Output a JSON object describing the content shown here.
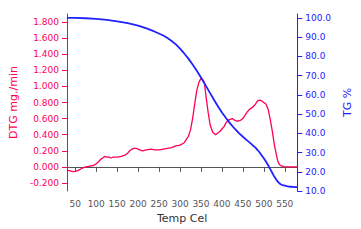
{
  "chart_data": {
    "type": "line",
    "xlabel": "Temp Cel",
    "ylabel": "DTG mg./min",
    "y2label": "TG %",
    "grid": false,
    "xlim": [
      30,
      580
    ],
    "xticks": [
      50,
      100,
      150,
      200,
      250,
      300,
      350,
      400,
      450,
      500,
      550
    ],
    "ylim": [
      -0.3,
      1.9
    ],
    "yticks": [
      {
        "value": -0.2,
        "label": "-0.200"
      },
      {
        "value": 0.0,
        "label": "0.000"
      },
      {
        "value": 0.2,
        "label": "0.200"
      },
      {
        "value": 0.4,
        "label": "0.400"
      },
      {
        "value": 0.6,
        "label": "0.600"
      },
      {
        "value": 0.8,
        "label": "0.800"
      },
      {
        "value": 1.0,
        "label": "1.000"
      },
      {
        "value": 1.2,
        "label": "1.200"
      },
      {
        "value": 1.4,
        "label": "1.400"
      },
      {
        "value": 1.6,
        "label": "1.600"
      },
      {
        "value": 1.8,
        "label": "1.800"
      }
    ],
    "y2lim": [
      10.0,
      102.0
    ],
    "y2ticks": [
      {
        "value": 10.0,
        "label": "10.0"
      },
      {
        "value": 20.0,
        "label": "20.0"
      },
      {
        "value": 30.0,
        "label": "30.0"
      },
      {
        "value": 40.0,
        "label": "40.0"
      },
      {
        "value": 50.0,
        "label": "50.0"
      },
      {
        "value": 60.0,
        "label": "60.0"
      },
      {
        "value": 70.0,
        "label": "70.0"
      },
      {
        "value": 80.0,
        "label": "80.0"
      },
      {
        "value": 90.0,
        "label": "90.0"
      },
      {
        "value": 100.0,
        "label": "100.0"
      }
    ],
    "series": [
      {
        "color": "#FF0055",
        "x": [
          30,
          45,
          55,
          65,
          75,
          85,
          95,
          100,
          105,
          110,
          115,
          120,
          125,
          130,
          135,
          140,
          145,
          150,
          160,
          170,
          175,
          180,
          185,
          190,
          195,
          200,
          210,
          220,
          230,
          240,
          250,
          260,
          270,
          280,
          290,
          300,
          310,
          320,
          325,
          330,
          335,
          340,
          345,
          350,
          355,
          358,
          362,
          367,
          372,
          378,
          385,
          390,
          395,
          400,
          405,
          410,
          415,
          420,
          425,
          430,
          435,
          440,
          445,
          450,
          455,
          460,
          465,
          470,
          475,
          480,
          485,
          490,
          495,
          500,
          505,
          510,
          515,
          520,
          525,
          530,
          533,
          536,
          539,
          542,
          545,
          548,
          552,
          555,
          558,
          562,
          566,
          570,
          575,
          580
        ],
        "values": [
          -0.04,
          -0.06,
          -0.05,
          -0.02,
          0.0,
          0.01,
          0.02,
          0.04,
          0.06,
          0.09,
          0.11,
          0.13,
          0.12,
          0.12,
          0.11,
          0.12,
          0.12,
          0.12,
          0.13,
          0.15,
          0.17,
          0.2,
          0.22,
          0.23,
          0.23,
          0.22,
          0.2,
          0.21,
          0.22,
          0.21,
          0.21,
          0.22,
          0.23,
          0.24,
          0.26,
          0.27,
          0.3,
          0.38,
          0.46,
          0.6,
          0.78,
          0.95,
          1.05,
          1.1,
          1.08,
          1.05,
          0.88,
          0.68,
          0.52,
          0.43,
          0.4,
          0.42,
          0.44,
          0.47,
          0.5,
          0.55,
          0.58,
          0.59,
          0.6,
          0.58,
          0.57,
          0.57,
          0.58,
          0.6,
          0.64,
          0.68,
          0.71,
          0.73,
          0.75,
          0.78,
          0.82,
          0.83,
          0.82,
          0.8,
          0.78,
          0.72,
          0.6,
          0.45,
          0.28,
          0.15,
          0.08,
          0.04,
          0.02,
          0.01,
          0.01,
          0.0,
          0.0,
          0.0,
          0.0,
          0.0,
          0.0,
          0.0,
          0.0,
          0.0
        ]
      },
      {
        "color": "#2222FF",
        "axis": "y2",
        "x": [
          30,
          50,
          75,
          100,
          125,
          150,
          175,
          200,
          220,
          240,
          260,
          270,
          280,
          290,
          300,
          310,
          320,
          330,
          340,
          350,
          360,
          370,
          380,
          390,
          400,
          410,
          420,
          430,
          440,
          450,
          460,
          470,
          475,
          480,
          485,
          490,
          495,
          500,
          505,
          510,
          515,
          520,
          525,
          530,
          535,
          540,
          545,
          550,
          555,
          560,
          565,
          570,
          575,
          580
        ],
        "values": [
          100.0,
          100.0,
          99.8,
          99.5,
          99.0,
          98.2,
          97.2,
          96.0,
          94.5,
          92.8,
          90.8,
          89.5,
          88.0,
          86.2,
          84.0,
          81.5,
          78.8,
          75.8,
          72.5,
          69.0,
          65.3,
          61.5,
          57.8,
          54.2,
          50.8,
          47.8,
          45.0,
          42.5,
          40.2,
          38.2,
          36.3,
          34.5,
          33.5,
          32.5,
          31.3,
          30.0,
          28.5,
          27.0,
          25.3,
          23.5,
          21.5,
          19.5,
          17.5,
          15.8,
          14.5,
          13.5,
          13.0,
          12.8,
          12.5,
          12.3,
          12.2,
          12.1,
          12.0,
          12.0
        ]
      }
    ]
  }
}
